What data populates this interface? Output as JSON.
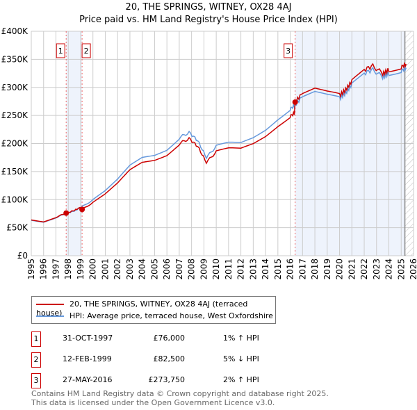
{
  "chart_data": {
    "type": "line",
    "title": "20, THE SPRINGS, WITNEY, OX28 4AJ",
    "subtitle": "Price paid vs. HM Land Registry's House Price Index (HPI)",
    "xlim": [
      1995,
      2026
    ],
    "ylim": [
      0,
      400000
    ],
    "x_ticks": [
      "1995",
      "1996",
      "1997",
      "1998",
      "1999",
      "2000",
      "2001",
      "2002",
      "2003",
      "2004",
      "2005",
      "2006",
      "2007",
      "2008",
      "2009",
      "2010",
      "2011",
      "2012",
      "2013",
      "2014",
      "2015",
      "2016",
      "2017",
      "2018",
      "2019",
      "2020",
      "2021",
      "2022",
      "2023",
      "2024",
      "2025",
      "2026"
    ],
    "y_ticks": [
      "£0",
      "£50K",
      "£100K",
      "£150K",
      "£200K",
      "£250K",
      "£300K",
      "£350K",
      "£400K"
    ],
    "hpi_x": [
      1995,
      1996,
      1997,
      1997.83,
      1998.5,
      1999.12,
      2000,
      2001,
      2002,
      2003,
      2004,
      2005,
      2006,
      2007,
      2007.8,
      2008.5,
      2009.2,
      2010,
      2011,
      2012,
      2013,
      2014,
      2015,
      2016,
      2016.4,
      2017,
      2018,
      2019,
      2020,
      2020.5,
      2021,
      2022,
      2022.7,
      2023.5,
      2024,
      2025,
      2025.4
    ],
    "hpi_y": [
      63000,
      60000,
      68000,
      75000,
      80000,
      87000,
      100000,
      115000,
      135000,
      160000,
      175000,
      180000,
      190000,
      210000,
      220000,
      205000,
      175000,
      195000,
      200000,
      200000,
      210000,
      225000,
      245000,
      262000,
      268000,
      285000,
      292000,
      285000,
      280000,
      290000,
      305000,
      325000,
      332000,
      318000,
      325000,
      330000,
      335000
    ],
    "sales": [
      {
        "label": "1",
        "date": "31-OCT-1997",
        "x": 1997.83,
        "price_value": 76000,
        "price": "£76,000",
        "hpi": "1% ↑ HPI"
      },
      {
        "label": "2",
        "date": "12-FEB-1999",
        "x": 1999.12,
        "price_value": 82500,
        "price": "£82,500",
        "hpi": "5% ↓ HPI"
      },
      {
        "label": "3",
        "date": "27-MAY-2016",
        "x": 2016.4,
        "price_value": 273750,
        "price": "£273,750",
        "hpi": "2% ↑ HPI"
      }
    ],
    "legend": [
      "20, THE SPRINGS, WITNEY, OX28 4AJ (terraced house)",
      "HPI: Average price, terraced house, West Oxfordshire"
    ],
    "colors": {
      "property": "#cc0000",
      "hpi": "#6699dd",
      "shade": "#eef3fc"
    }
  },
  "footer": [
    "Contains HM Land Registry data © Crown copyright and database right 2025.",
    "This data is licensed under the Open Government Licence v3.0."
  ]
}
